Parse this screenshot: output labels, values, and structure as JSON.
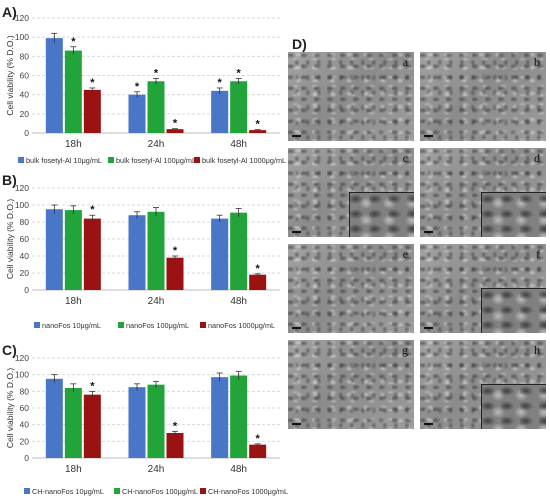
{
  "panels": {
    "a": "A)",
    "b": "B)",
    "c": "C)",
    "d": "D)"
  },
  "colors": {
    "blue": "#4a76c8",
    "green": "#22a43a",
    "red": "#9a1212"
  },
  "chart_data": [
    {
      "type": "bar",
      "ylabel": "Cell viability (% D.O.)",
      "xlabel": "",
      "ylim": [
        0,
        120
      ],
      "yticks": [
        "0",
        "20",
        "40",
        "60",
        "80",
        "100",
        "120"
      ],
      "categories": [
        "18h",
        "24h",
        "48h"
      ],
      "grid": true,
      "legend_position": "bottom",
      "series": [
        {
          "name": "bulk fosetyl-Al 10μg/mL",
          "values": [
            99,
            40,
            44
          ],
          "errors": [
            5,
            3,
            3
          ],
          "stars": [
            false,
            true,
            true
          ]
        },
        {
          "name": "bulk fosetyl-Al 100μg/mL",
          "values": [
            86,
            54,
            54
          ],
          "errors": [
            4,
            3,
            3
          ],
          "stars": [
            true,
            true,
            true
          ]
        },
        {
          "name": "bulk fosetyl-Al 1000μg/mL",
          "values": [
            45,
            4,
            3
          ],
          "errors": [
            2,
            0.5,
            0.5
          ],
          "stars": [
            true,
            true,
            true
          ]
        }
      ],
      "star_symbol": "*"
    },
    {
      "type": "bar",
      "ylabel": "Cell viability (% D.O.)",
      "xlabel": "",
      "ylim": [
        0,
        120
      ],
      "yticks": [
        "0",
        "20",
        "40",
        "60",
        "80",
        "100",
        "120"
      ],
      "categories": [
        "18h",
        "24h",
        "48h"
      ],
      "grid": true,
      "legend_position": "bottom",
      "series": [
        {
          "name": "nanoFos 10μg/mL",
          "values": [
            95,
            88,
            84
          ],
          "errors": [
            5,
            4,
            4
          ],
          "stars": [
            false,
            false,
            false
          ]
        },
        {
          "name": "nanoFos 100μg/mL",
          "values": [
            94,
            92,
            91
          ],
          "errors": [
            5,
            5,
            5
          ],
          "stars": [
            false,
            false,
            false
          ]
        },
        {
          "name": "nanoFos 1000μg/mL",
          "values": [
            84,
            38,
            18
          ],
          "errors": [
            4,
            2,
            1
          ],
          "stars": [
            true,
            true,
            true
          ]
        }
      ],
      "star_symbol": "*"
    },
    {
      "type": "bar",
      "ylabel": "Cell viability (% D.O.)",
      "xlabel": "",
      "ylim": [
        0,
        120
      ],
      "yticks": [
        "0",
        "20",
        "40",
        "60",
        "80",
        "100",
        "120"
      ],
      "categories": [
        "18h",
        "24h",
        "48h"
      ],
      "grid": true,
      "legend_position": "bottom",
      "series": [
        {
          "name": "CH-nanoFos 10μg/mL",
          "values": [
            95,
            85,
            97
          ],
          "errors": [
            5,
            4,
            5
          ],
          "stars": [
            false,
            false,
            false
          ]
        },
        {
          "name": "CH-nanoFos 100μg/mL",
          "values": [
            84,
            88,
            99
          ],
          "errors": [
            5,
            4,
            5
          ],
          "stars": [
            false,
            false,
            false
          ]
        },
        {
          "name": "CH-nanoFos 1000μg/mL",
          "values": [
            76,
            30,
            16
          ],
          "errors": [
            4,
            2,
            1
          ],
          "stars": [
            true,
            true,
            true
          ]
        }
      ],
      "star_symbol": "*"
    }
  ],
  "micrographs": {
    "letters": [
      "a",
      "b",
      "c",
      "d",
      "e",
      "f",
      "g",
      "h"
    ],
    "has_inset": [
      false,
      false,
      true,
      true,
      false,
      true,
      false,
      true
    ]
  }
}
